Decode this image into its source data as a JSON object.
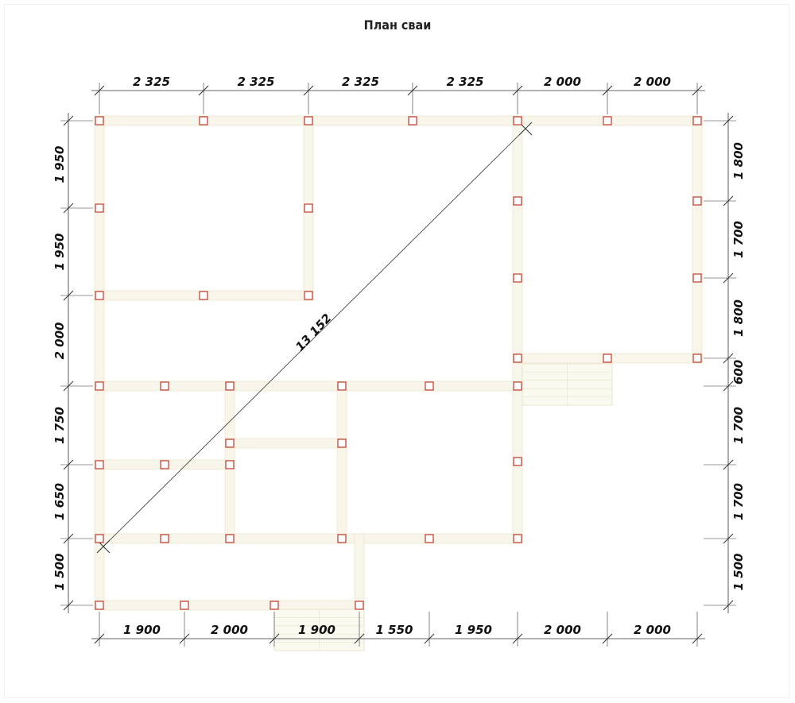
{
  "title": "План сваи",
  "colors": {
    "beam": "#f8f6ea",
    "beam_edge": "#ece7cf",
    "pile": "#c0392b",
    "dim_line": "#333333"
  },
  "dimensions": {
    "top": [
      "2 325",
      "2 325",
      "2 325",
      "2 325",
      "2 000",
      "2 000"
    ],
    "bottom": [
      "1 900",
      "2 000",
      "1 900",
      "1 550",
      "1 950",
      "2 000",
      "2 000"
    ],
    "left": [
      "1 950",
      "1 950",
      "2 000",
      "1 750",
      "1 650",
      "1 500"
    ],
    "right": [
      "1 800",
      "1 700",
      "1 800",
      "600",
      "1 700",
      "1 700",
      "1 500"
    ],
    "diagonal": "13 152"
  }
}
